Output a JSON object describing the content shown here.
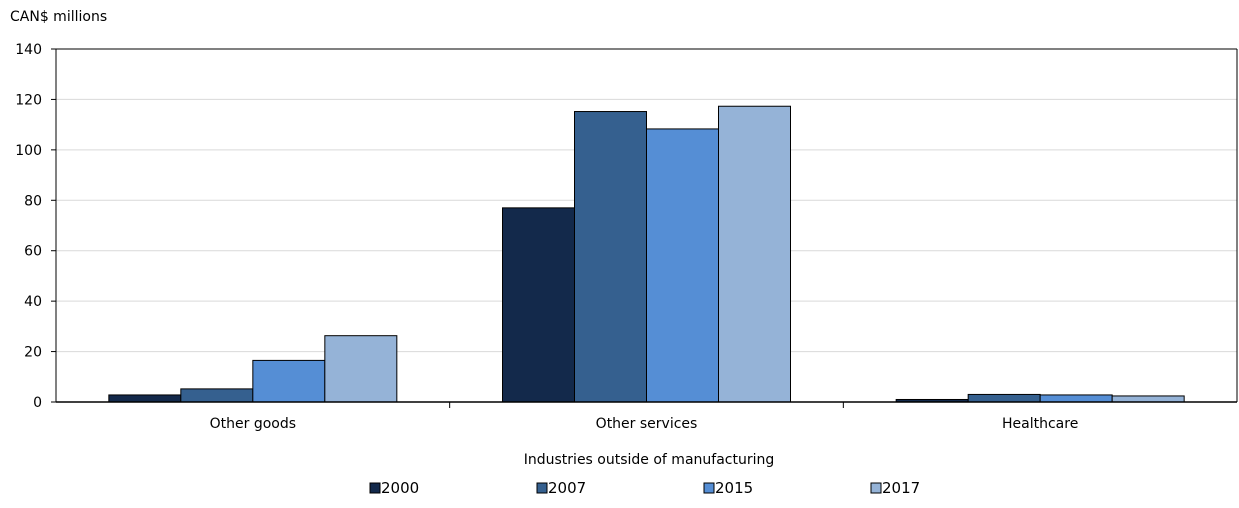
{
  "chart_data": {
    "type": "bar",
    "ylabel": "CAN$ millions",
    "xlabel": "Industries outside of manufacturing",
    "categories": [
      "Other goods",
      "Other services",
      "Healthcare"
    ],
    "series": [
      {
        "name": "2000",
        "color": "#13294b",
        "values": [
          2.8,
          77,
          1
        ]
      },
      {
        "name": "2007",
        "color": "#35608f",
        "values": [
          5.2,
          115.2,
          3
        ]
      },
      {
        "name": "2015",
        "color": "#558ed5",
        "values": [
          16.5,
          108.3,
          2.8
        ]
      },
      {
        "name": "2017",
        "color": "#95b3d7",
        "values": [
          26.3,
          117.3,
          2.4
        ]
      }
    ],
    "ylim": [
      0,
      140
    ],
    "yticks": [
      0,
      20,
      40,
      60,
      80,
      100,
      120,
      140
    ],
    "grid": true,
    "legend_position": "bottom"
  }
}
